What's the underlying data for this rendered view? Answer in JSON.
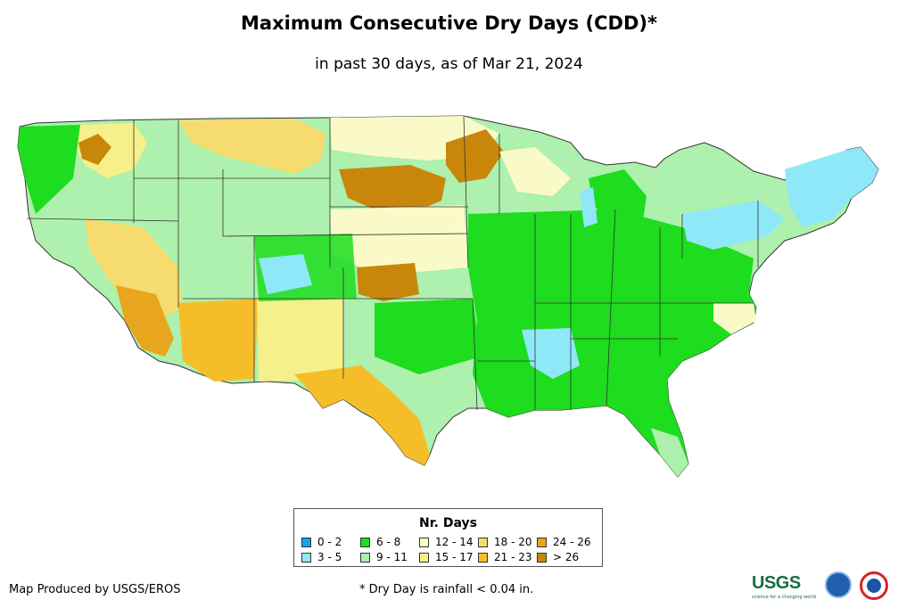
{
  "title": "Maximum Consecutive Dry Days (CDD)*",
  "subtitle": "in past 30 days, as of Mar 21, 2024",
  "legend": {
    "title": "Nr. Days",
    "items": [
      {
        "label": "0 - 2",
        "color": "#1aa3e8"
      },
      {
        "label": "3 - 5",
        "color": "#8ee8f8"
      },
      {
        "label": "6 - 8",
        "color": "#1edc1e"
      },
      {
        "label": "9 - 11",
        "color": "#aef0ae"
      },
      {
        "label": "12 - 14",
        "color": "#fafac8"
      },
      {
        "label": "15 - 17",
        "color": "#f6f08a"
      },
      {
        "label": "18 - 20",
        "color": "#f6dc6e"
      },
      {
        "label": "21 - 23",
        "color": "#f5be28"
      },
      {
        "label": "24 - 26",
        "color": "#e8a61e"
      },
      {
        "label": "> 26",
        "color": "#c8870a"
      }
    ]
  },
  "credit": "Map Produced by USGS/EROS",
  "footnote": "* Dry Day is rainfall < 0.04 in.",
  "logos": {
    "usgs": "USGS",
    "usgs_tagline": "science for a changing world",
    "noaa": "noaa-logo",
    "nws": "nws-logo"
  }
}
